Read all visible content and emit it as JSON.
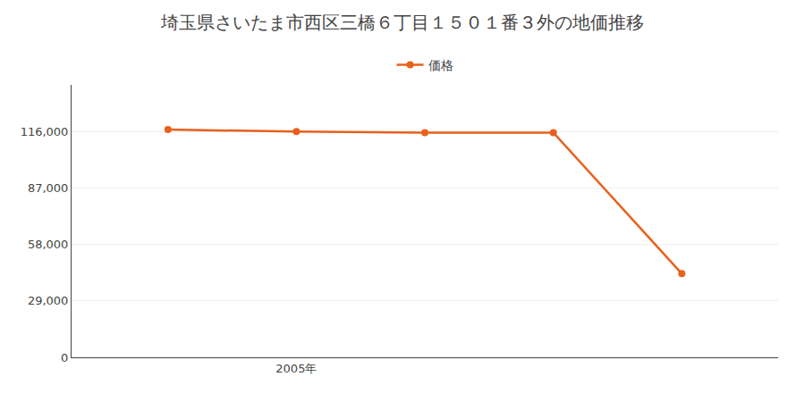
{
  "chart_data": {
    "type": "line",
    "title": "埼玉県さいたま市西区三橋６丁目１５０１番３外の地価推移",
    "x": [
      2003,
      2005,
      2007,
      2009,
      2011
    ],
    "series": [
      {
        "name": "価格",
        "color": "#E8601C",
        "marker": "circle",
        "values": [
          117000,
          116000,
          115500,
          115500,
          43000
        ]
      }
    ],
    "xlim": [
      2001.5,
      2012.5
    ],
    "xticks": [
      {
        "value": 2005,
        "label": "2005年"
      }
    ],
    "ylim": [
      0,
      140000
    ],
    "yticks": [
      0,
      {
        "value": 29000,
        "label": "29,000"
      },
      {
        "value": 58000,
        "label": "58,000"
      },
      {
        "value": 87000,
        "label": "87,000"
      },
      {
        "value": 116000,
        "label": "116,000"
      }
    ],
    "grid": "y",
    "legend": "top"
  }
}
